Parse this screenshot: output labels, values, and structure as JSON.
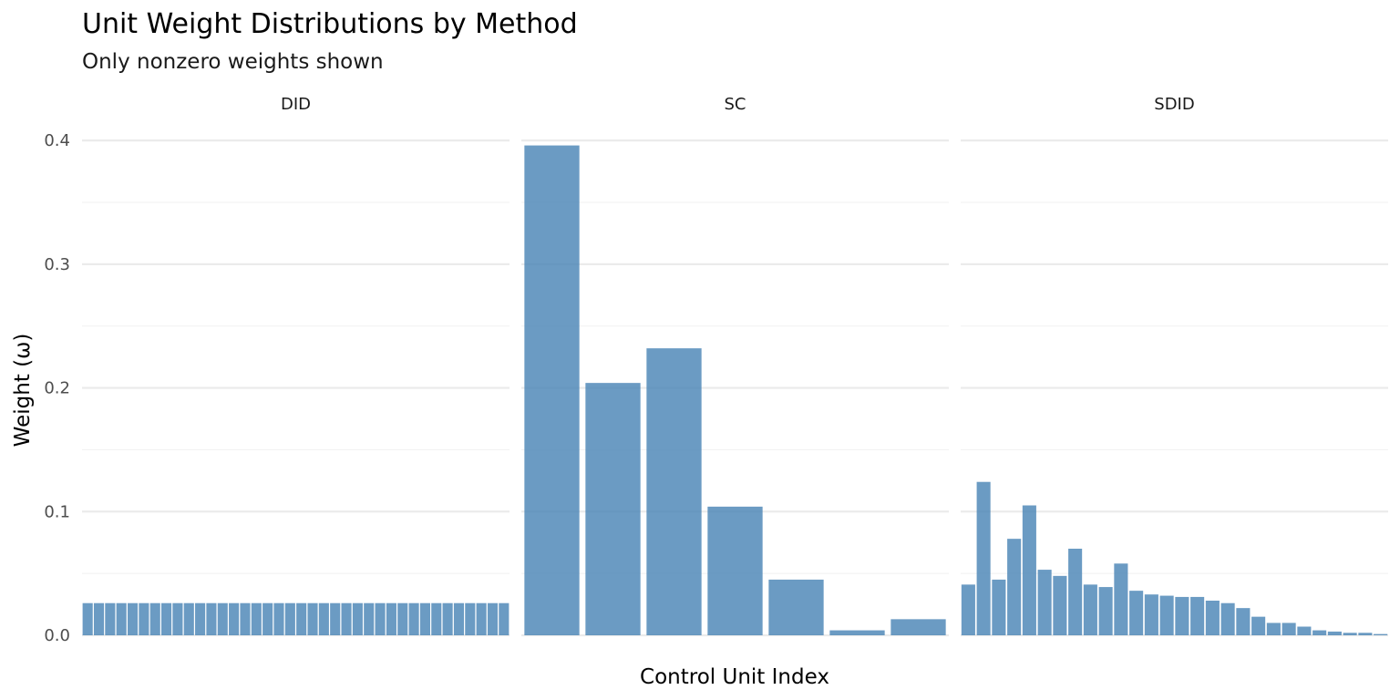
{
  "chart_data": {
    "type": "bar",
    "title": "Unit Weight Distributions by Method",
    "subtitle": "Only nonzero weights shown",
    "xlabel": "Control Unit Index",
    "ylabel": "Weight (ω)",
    "ylim": [
      0,
      0.4
    ],
    "y_ticks": [
      "0.0",
      "0.1",
      "0.2",
      "0.3",
      "0.4"
    ],
    "y_tick_values": [
      0,
      0.1,
      0.2,
      0.3,
      0.4
    ],
    "grid": true,
    "bar_color": "#4682b4",
    "facets": [
      {
        "name": "DID",
        "values": [
          0.026,
          0.026,
          0.026,
          0.026,
          0.026,
          0.026,
          0.026,
          0.026,
          0.026,
          0.026,
          0.026,
          0.026,
          0.026,
          0.026,
          0.026,
          0.026,
          0.026,
          0.026,
          0.026,
          0.026,
          0.026,
          0.026,
          0.026,
          0.026,
          0.026,
          0.026,
          0.026,
          0.026,
          0.026,
          0.026,
          0.026,
          0.026,
          0.026,
          0.026,
          0.026,
          0.026,
          0.026,
          0.026
        ]
      },
      {
        "name": "SC",
        "values": [
          0.396,
          0.204,
          0.232,
          0.104,
          0.045,
          0.004,
          0.013
        ]
      },
      {
        "name": "SDID",
        "values": [
          0.041,
          0.124,
          0.045,
          0.078,
          0.105,
          0.053,
          0.048,
          0.07,
          0.041,
          0.039,
          0.058,
          0.036,
          0.033,
          0.032,
          0.031,
          0.031,
          0.028,
          0.026,
          0.022,
          0.015,
          0.01,
          0.01,
          0.007,
          0.004,
          0.003,
          0.002,
          0.002,
          0.001
        ]
      }
    ]
  }
}
